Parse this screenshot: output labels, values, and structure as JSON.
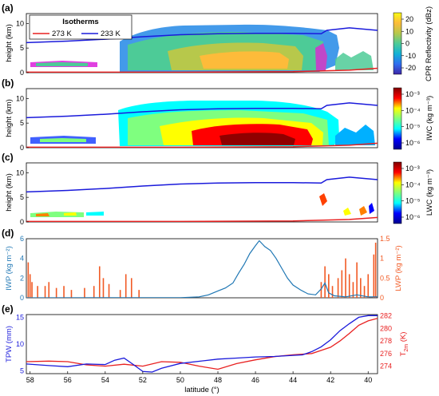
{
  "chart_data": [
    {
      "panel": "(a)",
      "type": "heatmap",
      "ylabel": "height (km)",
      "ylim": [
        0,
        12
      ],
      "yticks": [
        0,
        5,
        10
      ],
      "colorbar": {
        "label": "CPR Reflectivity (dBz)",
        "ticks": [
          "20",
          "10",
          "0",
          "-10",
          "-20"
        ],
        "range": [
          -28,
          25
        ],
        "colors": [
          "#3e26a8",
          "#2f6ef0",
          "#13b1d6",
          "#4dcb97",
          "#b7c84b",
          "#fdbb3a",
          "#f9fb14"
        ]
      },
      "legend": {
        "title": "Isotherms",
        "placement": "top-left",
        "entries": [
          {
            "name": "273 K",
            "color": "#e82020"
          },
          {
            "name": "233 K",
            "color": "#1a1adb"
          }
        ]
      },
      "isotherm_233K_km": [
        [
          58.2,
          6.1
        ],
        [
          56,
          6.4
        ],
        [
          54,
          6.8
        ],
        [
          52,
          7.3
        ],
        [
          50,
          7.7
        ],
        [
          48,
          7.9
        ],
        [
          46,
          8.0
        ],
        [
          44,
          8.0
        ],
        [
          42.5,
          7.9
        ],
        [
          42.2,
          8.6
        ],
        [
          41,
          9.1
        ],
        [
          39.5,
          8.6
        ]
      ],
      "isotherm_273K_km": [
        [
          58.2,
          0.1
        ],
        [
          50,
          0.1
        ],
        [
          44,
          0.2
        ],
        [
          41,
          0.5
        ],
        [
          39.5,
          0.9
        ]
      ]
    },
    {
      "panel": "(b)",
      "type": "heatmap",
      "ylabel": "height (km)",
      "ylim": [
        0,
        12
      ],
      "yticks": [
        0,
        5,
        10
      ],
      "colorbar": {
        "label": "IWC (kg m⁻³)",
        "ticks": [
          "10⁻³",
          "10⁻⁴",
          "10⁻⁵",
          "10⁻⁶"
        ],
        "colors": [
          "#00008f",
          "#0000ff",
          "#00ffff",
          "#7fff7f",
          "#ffff00",
          "#ff0000",
          "#800000"
        ]
      }
    },
    {
      "panel": "(c)",
      "type": "heatmap",
      "ylabel": "height (km)",
      "ylim": [
        0,
        12
      ],
      "yticks": [
        0,
        5,
        10
      ],
      "colorbar": {
        "label": "LWC (kg m⁻³)",
        "ticks": [
          "10⁻³",
          "10⁻⁴",
          "10⁻⁵",
          "10⁻⁶"
        ],
        "colors": [
          "#00008f",
          "#0000ff",
          "#00ffff",
          "#7fff7f",
          "#ffff00",
          "#ff0000",
          "#800000"
        ]
      }
    },
    {
      "panel": "(d)",
      "type": "line",
      "series": [
        {
          "name": "IWP (kg m⁻²)",
          "axis": "left",
          "color": "#1f77b4",
          "ylim": [
            0,
            6
          ],
          "yticks": [
            0,
            2,
            4,
            6
          ],
          "values": [
            [
              58.2,
              0.0
            ],
            [
              50.0,
              0.02
            ],
            [
              49.0,
              0.1
            ],
            [
              48.5,
              0.3
            ],
            [
              48.0,
              0.7
            ],
            [
              47.6,
              1.0
            ],
            [
              47.2,
              1.5
            ],
            [
              46.9,
              2.5
            ],
            [
              46.6,
              3.4
            ],
            [
              46.3,
              4.5
            ],
            [
              46.0,
              5.3
            ],
            [
              45.8,
              5.8
            ],
            [
              45.5,
              5.2
            ],
            [
              45.2,
              4.8
            ],
            [
              44.9,
              4.0
            ],
            [
              44.6,
              3.0
            ],
            [
              44.3,
              2.0
            ],
            [
              44.0,
              1.3
            ],
            [
              43.6,
              0.8
            ],
            [
              43.2,
              0.4
            ],
            [
              42.8,
              0.3
            ],
            [
              42.5,
              0.9
            ],
            [
              42.3,
              1.5
            ],
            [
              42.1,
              0.5
            ],
            [
              41.8,
              0.2
            ],
            [
              41.2,
              0.1
            ],
            [
              40.6,
              0.3
            ],
            [
              40.0,
              0.1
            ],
            [
              39.5,
              0.1
            ]
          ]
        },
        {
          "name": "LWP (kg m⁻²)",
          "axis": "right",
          "color": "#f15a24",
          "ylim": [
            0,
            1.5
          ],
          "yticks": [
            0,
            0.5,
            1,
            1.5
          ],
          "spikes": [
            [
              58.1,
              0.9
            ],
            [
              58.0,
              0.6
            ],
            [
              57.9,
              0.4
            ],
            [
              57.6,
              0.3
            ],
            [
              57.2,
              0.3
            ],
            [
              57.0,
              0.4
            ],
            [
              56.6,
              0.25
            ],
            [
              56.2,
              0.3
            ],
            [
              55.8,
              0.2
            ],
            [
              55.1,
              0.25
            ],
            [
              54.6,
              0.3
            ],
            [
              54.3,
              0.8
            ],
            [
              54.1,
              0.5
            ],
            [
              53.8,
              0.35
            ],
            [
              53.2,
              0.2
            ],
            [
              52.9,
              0.6
            ],
            [
              52.6,
              0.5
            ],
            [
              52.2,
              0.2
            ],
            [
              42.5,
              0.4
            ],
            [
              42.3,
              0.8
            ],
            [
              42.1,
              0.6
            ],
            [
              41.9,
              0.3
            ],
            [
              41.6,
              0.5
            ],
            [
              41.4,
              0.7
            ],
            [
              41.2,
              1.0
            ],
            [
              41.0,
              0.6
            ],
            [
              40.8,
              0.4
            ],
            [
              40.6,
              0.9
            ],
            [
              40.4,
              0.5
            ],
            [
              40.2,
              0.3
            ],
            [
              40.0,
              0.6
            ],
            [
              39.7,
              1.1
            ],
            [
              39.6,
              1.4
            ]
          ]
        }
      ]
    },
    {
      "panel": "(e)",
      "type": "line",
      "xlabel": "latitude (°)",
      "xlim": [
        58.2,
        39.5
      ],
      "xticks": [
        58,
        56,
        54,
        52,
        50,
        48,
        46,
        44,
        42,
        40
      ],
      "series": [
        {
          "name": "TPW (mm)",
          "axis": "left",
          "color": "#1a1adb",
          "ylim": [
            4.5,
            15.5
          ],
          "yticks": [
            5,
            10,
            15
          ],
          "values": [
            [
              58.2,
              6.3
            ],
            [
              57,
              6.0
            ],
            [
              56,
              5.8
            ],
            [
              55,
              6.3
            ],
            [
              54,
              6.2
            ],
            [
              53.5,
              7.0
            ],
            [
              53,
              7.4
            ],
            [
              52.5,
              6.2
            ],
            [
              52,
              4.9
            ],
            [
              51.5,
              4.8
            ],
            [
              51,
              5.5
            ],
            [
              50,
              6.4
            ],
            [
              49,
              6.8
            ],
            [
              48,
              7.2
            ],
            [
              47,
              7.4
            ],
            [
              46,
              7.6
            ],
            [
              45,
              7.7
            ],
            [
              44,
              7.9
            ],
            [
              43.5,
              8.0
            ],
            [
              43,
              8.6
            ],
            [
              42.5,
              9.5
            ],
            [
              42,
              10.8
            ],
            [
              41.5,
              12.5
            ],
            [
              41,
              13.8
            ],
            [
              40.5,
              15.0
            ],
            [
              40,
              15.3
            ],
            [
              39.5,
              15.3
            ]
          ]
        },
        {
          "name": "T_2m (K)",
          "label_main": "T",
          "label_sub": "2m",
          "label_unit": " (K)",
          "axis": "right",
          "color": "#e82020",
          "ylim": [
            272.8,
            282.2
          ],
          "yticks": [
            274,
            276,
            278,
            280,
            282
          ],
          "values": [
            [
              58.2,
              274.7
            ],
            [
              57,
              274.8
            ],
            [
              56,
              274.7
            ],
            [
              55,
              274.2
            ],
            [
              54,
              274.0
            ],
            [
              53,
              274.3
            ],
            [
              52,
              274.0
            ],
            [
              51,
              274.7
            ],
            [
              50,
              274.6
            ],
            [
              49,
              274.0
            ],
            [
              48,
              273.5
            ],
            [
              47,
              274.4
            ],
            [
              46,
              275.0
            ],
            [
              45,
              275.5
            ],
            [
              44,
              275.8
            ],
            [
              43,
              276.0
            ],
            [
              42.5,
              276.5
            ],
            [
              42,
              277.0
            ],
            [
              41.5,
              278.0
            ],
            [
              41,
              279.2
            ],
            [
              40.5,
              280.5
            ],
            [
              40,
              281.2
            ],
            [
              39.5,
              281.6
            ]
          ]
        }
      ]
    }
  ]
}
